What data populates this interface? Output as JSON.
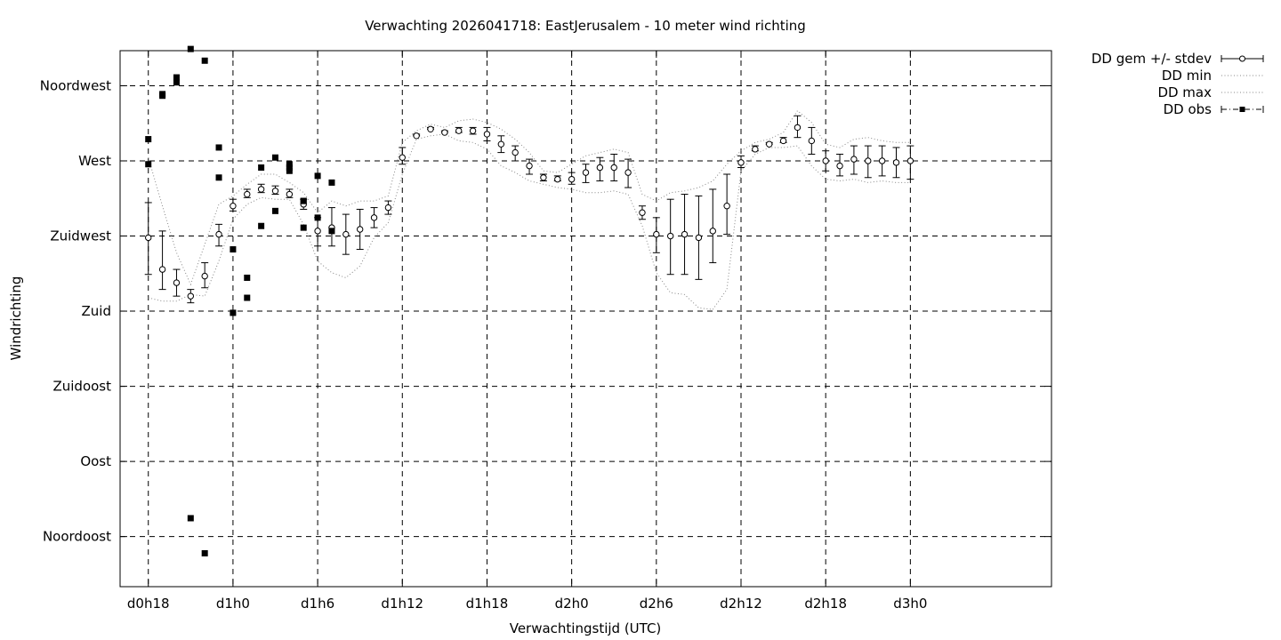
{
  "chart_data": {
    "type": "line",
    "title": "Verwachting 2026041718: EastJerusalem - 10 meter wind richting",
    "xlabel": "Verwachtingstijd (UTC)",
    "ylabel": "Windrichting",
    "xlim": [
      16,
      82
    ],
    "ylim": [
      15,
      336
    ],
    "x_ticks": [
      {
        "value": 18,
        "label": "d0h18"
      },
      {
        "value": 24,
        "label": "d1h0"
      },
      {
        "value": 30,
        "label": "d1h6"
      },
      {
        "value": 36,
        "label": "d1h12"
      },
      {
        "value": 42,
        "label": "d1h18"
      },
      {
        "value": 48,
        "label": "d2h0"
      },
      {
        "value": 54,
        "label": "d2h6"
      },
      {
        "value": 60,
        "label": "d2h12"
      },
      {
        "value": 66,
        "label": "d2h18"
      },
      {
        "value": 72,
        "label": "d3h0"
      }
    ],
    "y_ticks": [
      {
        "value": 45,
        "label": "Noordoost"
      },
      {
        "value": 90,
        "label": "Oost"
      },
      {
        "value": 135,
        "label": "Zuidoost"
      },
      {
        "value": 180,
        "label": "Zuid"
      },
      {
        "value": 225,
        "label": "Zuidwest"
      },
      {
        "value": 270,
        "label": "West"
      },
      {
        "value": 315,
        "label": "Noordwest"
      }
    ],
    "grid": true,
    "legend_position": "outside-top-right",
    "series": [
      {
        "name": "DD gem +/- stdev",
        "style": "errorbars-open-circle",
        "x": [
          18,
          19,
          20,
          21,
          22,
          23,
          24,
          25,
          26,
          27,
          28,
          29,
          30,
          31,
          32,
          33,
          34,
          35,
          36,
          37,
          38,
          39,
          40,
          41,
          42,
          43,
          44,
          45,
          46,
          47,
          48,
          49,
          50,
          51,
          52,
          53,
          54,
          55,
          56,
          57,
          58,
          59,
          60,
          61,
          62,
          63,
          64,
          65,
          66,
          67,
          68,
          69,
          70,
          71,
          72
        ],
        "mean": [
          224,
          205,
          197,
          189,
          201,
          226,
          243,
          250,
          253,
          252,
          250,
          244,
          228,
          230,
          226,
          229,
          236,
          242,
          272,
          285,
          289,
          287,
          288,
          288,
          286,
          280,
          275,
          267,
          260,
          259,
          259,
          263,
          266,
          266,
          263,
          239,
          226,
          225,
          226,
          224,
          228,
          243,
          269,
          277,
          280,
          282,
          290,
          282,
          270,
          267,
          271,
          270,
          270,
          269,
          270
        ],
        "low": [
          202,
          193,
          189,
          185,
          194,
          219,
          240,
          248,
          251,
          250,
          248,
          241,
          219,
          219,
          214,
          217,
          230,
          238,
          268,
          285,
          289,
          287,
          287,
          286,
          282,
          275,
          270,
          262,
          258,
          258,
          256,
          257,
          258,
          258,
          254,
          235,
          215,
          202,
          202,
          199,
          209,
          226,
          266,
          276,
          280,
          281,
          284,
          274,
          264,
          261,
          262,
          260,
          261,
          260,
          259
        ],
        "high": [
          245,
          228,
          205,
          193,
          209,
          232,
          247,
          253,
          256,
          255,
          253,
          247,
          236,
          242,
          238,
          241,
          242,
          246,
          278,
          286,
          290,
          288,
          290,
          290,
          290,
          285,
          279,
          271,
          262,
          261,
          263,
          268,
          272,
          274,
          271,
          243,
          236,
          247,
          250,
          249,
          253,
          262,
          273,
          279,
          281,
          284,
          297,
          290,
          276,
          274,
          279,
          279,
          279,
          278,
          279
        ]
      },
      {
        "name": "DD min",
        "style": "dotted",
        "x": [
          18,
          19,
          20,
          21,
          22,
          23,
          24,
          25,
          26,
          27,
          28,
          29,
          30,
          31,
          32,
          33,
          34,
          35,
          36,
          37,
          38,
          39,
          40,
          41,
          42,
          43,
          44,
          45,
          46,
          47,
          48,
          49,
          50,
          51,
          52,
          53,
          54,
          55,
          56,
          57,
          58,
          59,
          60,
          61,
          62,
          63,
          64,
          65,
          66,
          67,
          68,
          69,
          70,
          71,
          72
        ],
        "values": [
          188,
          186,
          186,
          190,
          189,
          210,
          235,
          244,
          248,
          247,
          247,
          232,
          210,
          203,
          200,
          207,
          224,
          233,
          262,
          283,
          285,
          286,
          282,
          281,
          277,
          267,
          263,
          258,
          256,
          254,
          253,
          251,
          251,
          252,
          250,
          231,
          203,
          191,
          190,
          182,
          181,
          193,
          264,
          274,
          278,
          278,
          279,
          267,
          259,
          258,
          259,
          257,
          258,
          257,
          257
        ]
      },
      {
        "name": "DD max",
        "style": "dotted",
        "x": [
          18,
          19,
          20,
          21,
          22,
          23,
          24,
          25,
          26,
          27,
          28,
          29,
          30,
          31,
          32,
          33,
          34,
          35,
          36,
          37,
          38,
          39,
          40,
          41,
          42,
          43,
          44,
          45,
          46,
          47,
          48,
          49,
          50,
          51,
          52,
          53,
          54,
          55,
          56,
          57,
          58,
          59,
          60,
          61,
          62,
          63,
          64,
          65,
          66,
          67,
          68,
          69,
          70,
          71,
          72
        ],
        "values": [
          272,
          243,
          215,
          196,
          220,
          244,
          249,
          256,
          262,
          262,
          257,
          251,
          239,
          246,
          243,
          246,
          246,
          249,
          281,
          288,
          292,
          290,
          294,
          295,
          293,
          289,
          283,
          275,
          264,
          263,
          268,
          273,
          275,
          277,
          275,
          250,
          246,
          251,
          252,
          254,
          258,
          268,
          276,
          281,
          283,
          287,
          300,
          293,
          280,
          278,
          283,
          284,
          282,
          281,
          281
        ]
      },
      {
        "name": "DD obs",
        "style": "filled-square",
        "points": [
          [
            18,
            283
          ],
          [
            18,
            268
          ],
          [
            19,
            309
          ],
          [
            19,
            310
          ],
          [
            20,
            317
          ],
          [
            20,
            320
          ],
          [
            21,
            337
          ],
          [
            21,
            56
          ],
          [
            22,
            330
          ],
          [
            22,
            35
          ],
          [
            23,
            278
          ],
          [
            23,
            260
          ],
          [
            24,
            217
          ],
          [
            24,
            179
          ],
          [
            25,
            200
          ],
          [
            25,
            188
          ],
          [
            26,
            266
          ],
          [
            26,
            231
          ],
          [
            27,
            272
          ],
          [
            27,
            240
          ],
          [
            28,
            268
          ],
          [
            28,
            266
          ],
          [
            28,
            264
          ],
          [
            29,
            246
          ],
          [
            29,
            246
          ],
          [
            29,
            230
          ],
          [
            30,
            261
          ],
          [
            30,
            236
          ],
          [
            31,
            257
          ],
          [
            31,
            228
          ]
        ]
      }
    ]
  }
}
